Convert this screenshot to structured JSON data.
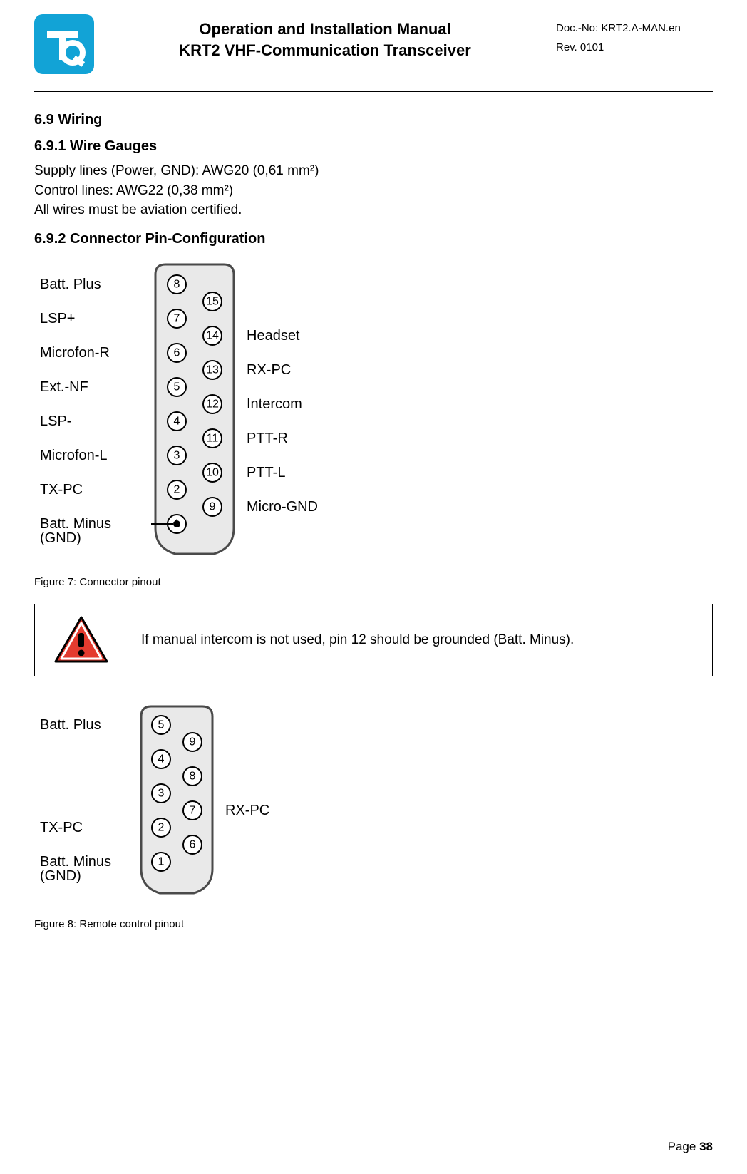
{
  "header": {
    "title_line1": "Operation and Installation Manual",
    "title_line2": "KRT2 VHF-Communication Transceiver",
    "doc_no_label": "Doc.-No: ",
    "doc_no": "KRT2.A-MAN.en",
    "rev_label": "Rev. ",
    "rev": "0101",
    "logo": {
      "bg": "#12a3d6",
      "fg": "#ffffff"
    }
  },
  "sections": {
    "s69": "6.9  Wiring",
    "s691": "6.9.1  Wire Gauges",
    "p1": "Supply lines (Power, GND): AWG20 (0,61 mm²)",
    "p2": "Control lines: AWG22 (0,38 mm²)",
    "p3": "All wires must be aviation certified.",
    "s692": "6.9.2  Connector Pin-Configuration"
  },
  "figures": {
    "fig7_caption": "Figure 7: Connector pinout",
    "fig8_caption": "Figure 8: Remote control pinout"
  },
  "warning": {
    "text": "If manual intercom is not used, pin 12 should be grounded (Batt. Minus).",
    "colors": {
      "triangle_fill": "#e43b2f",
      "triangle_stroke": "#000000",
      "bang": "#000000"
    }
  },
  "connector15": {
    "body_fill": "#e9e9e9",
    "body_stroke": "#4a4a4a",
    "pin_fill": "#ffffff",
    "pin_stroke": "#000000",
    "left_labels": [
      {
        "pin": 8,
        "text": "Batt. Plus"
      },
      {
        "pin": 7,
        "text": "LSP+"
      },
      {
        "pin": 6,
        "text": "Microfon-R"
      },
      {
        "pin": 5,
        "text": "Ext.-NF"
      },
      {
        "pin": 4,
        "text": "LSP-"
      },
      {
        "pin": 3,
        "text": "Microfon-L"
      },
      {
        "pin": 2,
        "text": "TX-PC"
      },
      {
        "pin": 1,
        "text": "Batt. Minus\n(GND)"
      }
    ],
    "right_labels": [
      {
        "pin": 14,
        "text": "Headset"
      },
      {
        "pin": 13,
        "text": "RX-PC"
      },
      {
        "pin": 12,
        "text": "Intercom"
      },
      {
        "pin": 11,
        "text": "PTT-R"
      },
      {
        "pin": 10,
        "text": "PTT-L"
      },
      {
        "pin": 9,
        "text": "Micro-GND"
      }
    ],
    "left_col_pins": [
      8,
      7,
      6,
      5,
      4,
      3,
      2,
      1
    ],
    "right_col_pins": [
      15,
      14,
      13,
      12,
      11,
      10,
      9
    ]
  },
  "connector9": {
    "body_fill": "#e9e9e9",
    "body_stroke": "#4a4a4a",
    "pin_fill": "#ffffff",
    "pin_stroke": "#000000",
    "left_labels": [
      {
        "pin": 5,
        "text": "Batt. Plus"
      },
      {
        "pin": 2,
        "text": "TX-PC"
      },
      {
        "pin": 1,
        "text": "Batt. Minus\n(GND)"
      }
    ],
    "right_labels": [
      {
        "pin": 7,
        "text": "RX-PC"
      }
    ],
    "left_col_pins": [
      5,
      4,
      3,
      2,
      1
    ],
    "right_col_pins": [
      9,
      8,
      7,
      6
    ]
  },
  "footer": {
    "page_label": "Page ",
    "page_num": "38"
  }
}
